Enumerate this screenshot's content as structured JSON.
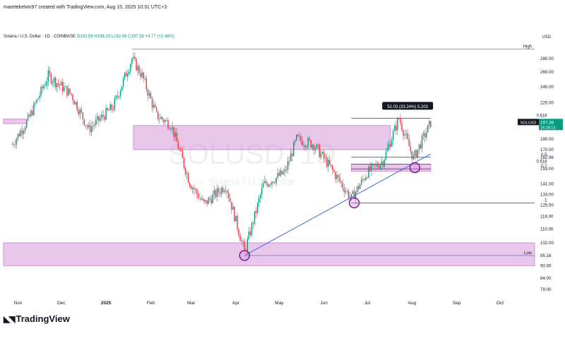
{
  "caption": "maretekelvin97 created with TradingView.com, Aug 15, 2025 10:31 UTC+3",
  "symbol_line": {
    "name": "Solana / U.S. Dollar · 1D · COINBASE",
    "open": "O192.59",
    "high": "H198.20",
    "low": "L192.08",
    "close": "C197.38",
    "change": "+4.77 (+2.48%)"
  },
  "currency": "USD",
  "watermark": {
    "ticker": "SOLUSD, 1D",
    "name": "Solana / U.S. Dollar"
  },
  "brand": "TradingView",
  "colors": {
    "up": "#089981",
    "down": "#f23645",
    "zone": "#d48fd8",
    "trend": "#3b67d8",
    "accent_circle": "#7b1f8a",
    "tag_bg": "#131722"
  },
  "chart_data": {
    "type": "candlestick",
    "title": "Solana / U.S. Dollar · 1D · COINBASE",
    "x_labels": [
      "Nov",
      "Dec",
      "2025",
      "Feb",
      "Mar",
      "Apr",
      "May",
      "Jun",
      "Jul",
      "Aug",
      "Sep",
      "Oct"
    ],
    "y_ticks": [
      79.0,
      84.0,
      90.0,
      95.16,
      102.0,
      110.0,
      118.0,
      125.5,
      133.0,
      141.0,
      153.0,
      162.96,
      170.0,
      180.0,
      197.38,
      220.0,
      240.0,
      260.0,
      280.0
    ],
    "y_tick_labels": [
      "79.00",
      "84.00",
      "90.00",
      "95.16",
      "102.00",
      "110.00",
      "118.00",
      "125.50",
      "133.00",
      "141.00",
      "153.00",
      "162.96",
      "170.00",
      "180.00",
      "197.38",
      "220.00",
      "240.00",
      "260.00",
      "280.00"
    ],
    "y_scale": "log",
    "ylim": [
      76,
      312
    ],
    "grid": false,
    "close_path": [
      {
        "d": "2024-10-28",
        "v": 175
      },
      {
        "d": "2024-11-08",
        "v": 200
      },
      {
        "d": "2024-11-22",
        "v": 255
      },
      {
        "d": "2024-12-08",
        "v": 230
      },
      {
        "d": "2024-12-20",
        "v": 190
      },
      {
        "d": "2025-01-06",
        "v": 215
      },
      {
        "d": "2025-01-19",
        "v": 280
      },
      {
        "d": "2025-01-26",
        "v": 255
      },
      {
        "d": "2025-02-05",
        "v": 205
      },
      {
        "d": "2025-02-15",
        "v": 195
      },
      {
        "d": "2025-02-28",
        "v": 142
      },
      {
        "d": "2025-03-10",
        "v": 126
      },
      {
        "d": "2025-03-25",
        "v": 140
      },
      {
        "d": "2025-04-07",
        "v": 97
      },
      {
        "d": "2025-04-20",
        "v": 140
      },
      {
        "d": "2025-05-05",
        "v": 150
      },
      {
        "d": "2025-05-13",
        "v": 180
      },
      {
        "d": "2025-05-25",
        "v": 175
      },
      {
        "d": "2025-06-05",
        "v": 155
      },
      {
        "d": "2025-06-20",
        "v": 130
      },
      {
        "d": "2025-07-01",
        "v": 150
      },
      {
        "d": "2025-07-12",
        "v": 160
      },
      {
        "d": "2025-07-23",
        "v": 202
      },
      {
        "d": "2025-08-02",
        "v": 162
      },
      {
        "d": "2025-08-14",
        "v": 197
      }
    ],
    "zones": [
      {
        "from": "2024-10-22",
        "to": "2024-11-07",
        "low": 196,
        "high": 201
      },
      {
        "from": "2025-01-20",
        "to": "2025-07-17",
        "low": 170,
        "high": 194
      },
      {
        "from": "2025-06-20",
        "to": "2025-08-14",
        "low": 151,
        "high": 157
      },
      {
        "from": "2024-10-22",
        "to": "2025-10-25",
        "low": 90,
        "high": 102
      }
    ],
    "trendline": {
      "from": {
        "d": "2025-04-07",
        "v": 95.16
      },
      "to": {
        "d": "2025-08-14",
        "v": 166
      }
    },
    "circles": [
      {
        "d": "2025-04-07",
        "v": 95.16
      },
      {
        "d": "2025-06-22",
        "v": 127
      },
      {
        "d": "2025-08-03",
        "v": 154
      }
    ],
    "hlines": [
      {
        "v": 295,
        "from": "2025-01-19",
        "to": "2025-10-25",
        "label": "High"
      },
      {
        "v": 95.16,
        "from": "2025-04-07",
        "to": "2025-10-25",
        "label": "Low"
      },
      {
        "v": 202,
        "from": "2025-06-20",
        "to": "2025-08-14",
        "label": "0.618"
      },
      {
        "v": 162.96,
        "from": "2025-06-20",
        "to": "2025-08-14",
        "label": "0.5"
      },
      {
        "v": 157,
        "from": "2025-06-20",
        "to": "2025-08-14",
        "label": "0.618"
      },
      {
        "v": 153,
        "from": "2025-06-20",
        "to": "2025-08-14",
        "label": "0.7"
      },
      {
        "v": 127,
        "from": "2025-06-20",
        "to": "2025-10-25",
        "label": "1"
      }
    ],
    "measure_label": "52.03 (33.24%) 5,203",
    "last_price": {
      "symbol": "SOLUSD",
      "price": "197.38",
      "countdown": "16:28:13"
    },
    "x_start": "2024-10-22",
    "x_end": "2025-10-25"
  }
}
